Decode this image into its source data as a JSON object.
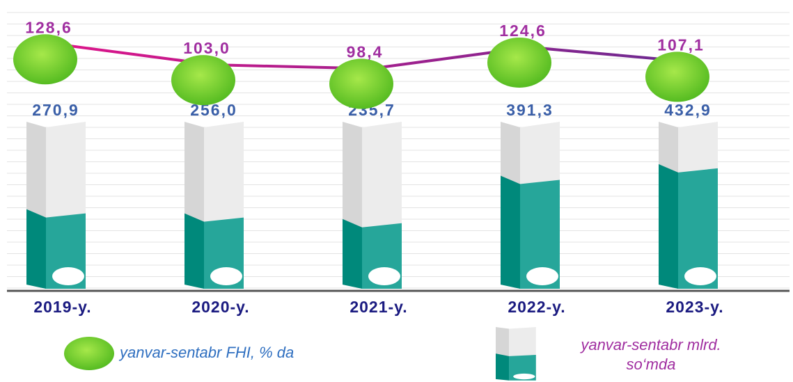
{
  "chart_data": {
    "type": "bar",
    "categories": [
      "2019-y.",
      "2020-y.",
      "2021-y.",
      "2022-y.",
      "2023-y."
    ],
    "series": [
      {
        "name": "yanvar-sentabr mlrd. so‘mda",
        "type": "bar",
        "color": "#26a69a",
        "values": [
          270.9,
          256.0,
          235.7,
          391.3,
          432.9
        ],
        "value_labels": [
          "270,9",
          "256,0",
          "235,7",
          "391,3",
          "432,9"
        ]
      },
      {
        "name": "yanvar-sentabr FHI, % da",
        "type": "line",
        "axis": "y2",
        "color": "#c0148c",
        "values": [
          128.6,
          103.0,
          98.4,
          124.6,
          107.1
        ],
        "value_labels": [
          "128,6",
          "103,0",
          "98,4",
          "124,6",
          "107,1"
        ]
      }
    ],
    "ylim": [
      0,
      600
    ],
    "y2lim": [
      80,
      140
    ],
    "grid": true
  }
}
